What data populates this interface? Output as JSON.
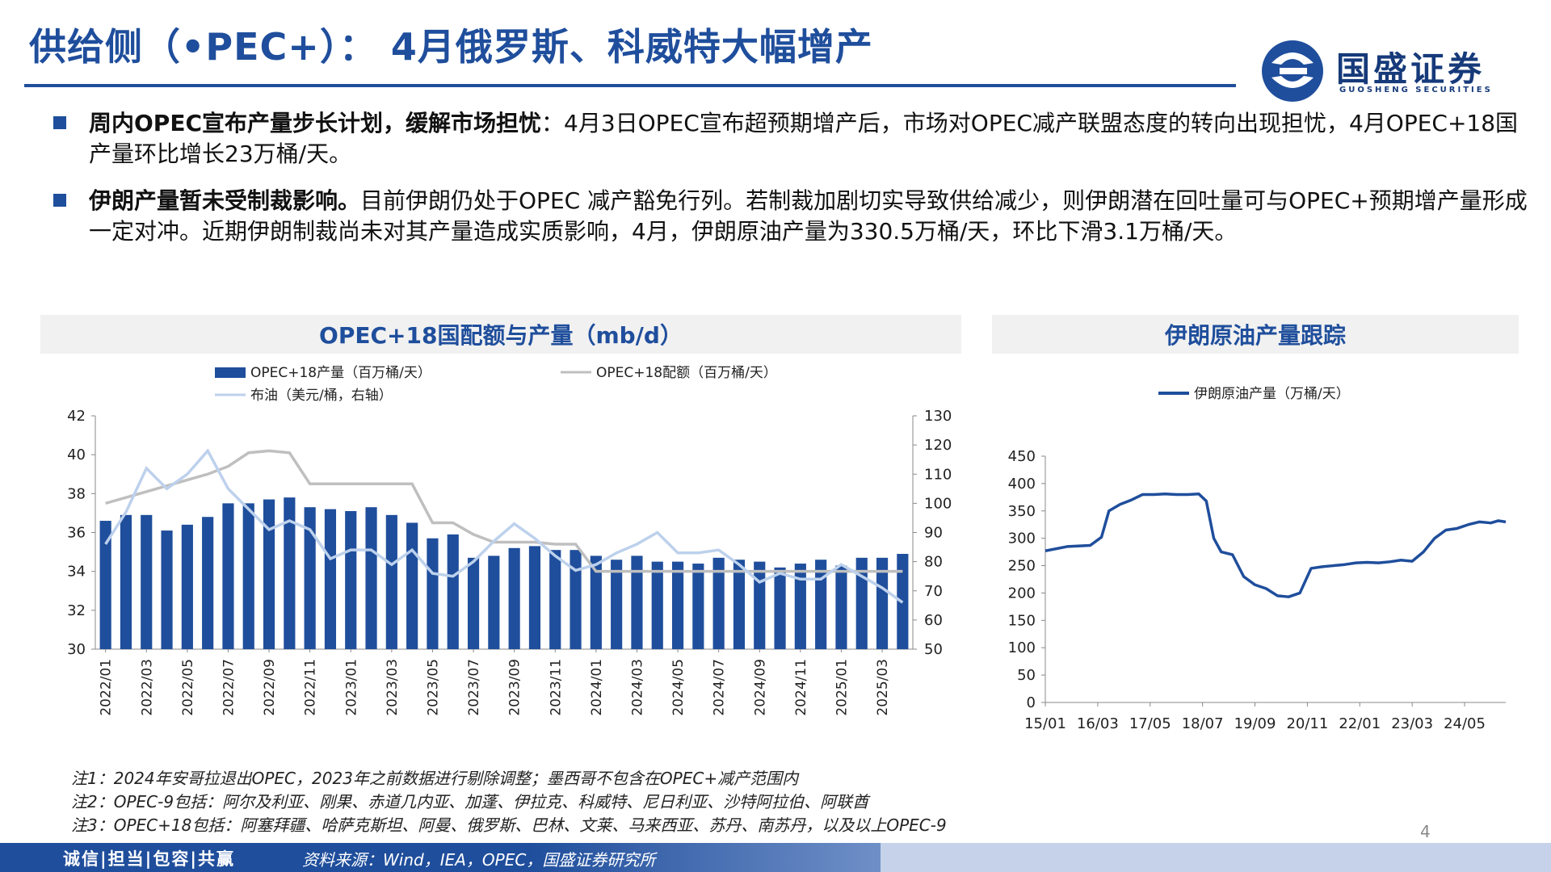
{
  "header": {
    "title": "供给侧（•PEC+）： 4月俄罗斯、科威特大幅增产",
    "logo_name": "国盛证券",
    "logo_sub": "GUOSHENG SECURITIES"
  },
  "bullets": [
    {
      "bold": "周内OPEC宣布产量步长计划，缓解市场担忧",
      "text": "：4月3日OPEC宣布超预期增产后，市场对OPEC减产联盟态度的转向出现担忧，4月OPEC+18国产量环比增长23万桶/天。"
    },
    {
      "bold": "伊朗产量暂未受制裁影响。",
      "text": "目前伊朗仍处于OPEC 减产豁免行列。若制裁加剧切实导致供给减少，则伊朗潜在回吐量可与OPEC+预期增产量形成一定对冲。近期伊朗制裁尚未对其产量造成实质影响，4月，伊朗原油产量为330.5万桶/天，环比下滑3.1万桶/天。"
    }
  ],
  "chart_data": [
    {
      "type": "bar",
      "title": "OPEC+18国配额与产量（mb/d）",
      "legend": [
        "OPEC+18产量（百万桶/天）",
        "OPEC+18配额（百万桶/天）",
        "布油（美元/桶，右轴）"
      ],
      "x_tick_labels": [
        "2022/01",
        "2022/03",
        "2022/05",
        "2022/07",
        "2022/09",
        "2022/11",
        "2023/01",
        "2023/03",
        "2023/05",
        "2023/07",
        "2023/09",
        "2023/11",
        "2024/01",
        "2024/03",
        "2024/05",
        "2024/07",
        "2024/09",
        "2024/11",
        "2025/01",
        "2025/03"
      ],
      "left_axis": {
        "ylim": [
          30,
          42
        ],
        "ticks": [
          30,
          32,
          34,
          36,
          38,
          40,
          42
        ]
      },
      "right_axis": {
        "ylim": [
          50,
          130
        ],
        "ticks": [
          50,
          60,
          70,
          80,
          90,
          100,
          110,
          120,
          130
        ]
      },
      "months": [
        "2022/01",
        "2022/02",
        "2022/03",
        "2022/04",
        "2022/05",
        "2022/06",
        "2022/07",
        "2022/08",
        "2022/09",
        "2022/10",
        "2022/11",
        "2022/12",
        "2023/01",
        "2023/02",
        "2023/03",
        "2023/04",
        "2023/05",
        "2023/06",
        "2023/07",
        "2023/08",
        "2023/09",
        "2023/10",
        "2023/11",
        "2023/12",
        "2024/01",
        "2024/02",
        "2024/03",
        "2024/04",
        "2024/05",
        "2024/06",
        "2024/07",
        "2024/08",
        "2024/09",
        "2024/10",
        "2024/11",
        "2024/12",
        "2025/01",
        "2025/02",
        "2025/03",
        "2025/04"
      ],
      "series": [
        {
          "name": "OPEC+18产量（百万桶/天）",
          "type": "bar",
          "axis": "left",
          "color": "#1f4e9c",
          "values": [
            36.6,
            36.9,
            36.9,
            36.1,
            36.4,
            36.8,
            37.5,
            37.5,
            37.7,
            37.8,
            37.3,
            37.2,
            37.1,
            37.3,
            36.9,
            36.5,
            35.7,
            35.9,
            34.7,
            34.8,
            35.2,
            35.3,
            35.1,
            35.1,
            34.8,
            34.6,
            34.8,
            34.5,
            34.5,
            34.4,
            34.7,
            34.6,
            34.5,
            34.2,
            34.4,
            34.6,
            34.3,
            34.7,
            34.7,
            34.9
          ]
        },
        {
          "name": "OPEC+18配额（百万桶/天）",
          "type": "line",
          "axis": "left",
          "color": "#bfbfbf",
          "values": [
            37.5,
            37.8,
            38.1,
            38.4,
            38.7,
            39.0,
            39.4,
            40.1,
            40.2,
            40.1,
            38.5,
            38.5,
            38.5,
            38.5,
            38.5,
            38.5,
            36.5,
            36.5,
            35.9,
            35.5,
            35.5,
            35.5,
            35.4,
            35.4,
            34.0,
            34.0,
            34.0,
            34.0,
            34.0,
            34.0,
            34.0,
            34.0,
            34.0,
            34.0,
            34.0,
            34.0,
            34.0,
            34.0,
            34.0,
            34.0
          ]
        },
        {
          "name": "布油（美元/桶，右轴）",
          "type": "line",
          "axis": "right",
          "color": "#bdd1ec",
          "values": [
            86,
            97,
            112,
            105,
            110,
            118,
            105,
            98,
            91,
            94,
            91,
            81,
            84,
            84,
            79,
            84,
            76,
            75,
            80,
            87,
            93,
            88,
            82,
            77,
            79,
            83,
            86,
            90,
            83,
            83,
            84,
            79,
            73,
            76,
            74,
            74,
            79,
            75,
            71,
            66
          ]
        }
      ]
    },
    {
      "type": "line",
      "title": "伊朗原油产量跟踪",
      "legend": [
        "伊朗原油产量（万桶/天）"
      ],
      "x_tick_labels": [
        "15/01",
        "16/03",
        "17/05",
        "18/07",
        "19/09",
        "20/11",
        "22/01",
        "23/03",
        "24/05"
      ],
      "ylim": [
        0,
        450
      ],
      "y_ticks": [
        0,
        50,
        100,
        150,
        200,
        250,
        300,
        350,
        400,
        450
      ],
      "series": [
        {
          "name": "伊朗原油产量（万桶/天）",
          "color": "#1f4e9c",
          "x": [
            "15/01",
            "15/07",
            "16/01",
            "16/04",
            "16/06",
            "16/09",
            "16/12",
            "17/03",
            "17/06",
            "17/09",
            "17/12",
            "18/03",
            "18/06",
            "18/08",
            "18/10",
            "18/12",
            "19/03",
            "19/06",
            "19/09",
            "19/12",
            "20/03",
            "20/06",
            "20/09",
            "20/12",
            "21/03",
            "21/06",
            "21/09",
            "21/12",
            "22/03",
            "22/06",
            "22/09",
            "22/12",
            "23/03",
            "23/06",
            "23/09",
            "23/12",
            "24/03",
            "24/06",
            "24/09",
            "24/12",
            "25/02",
            "25/04"
          ],
          "values": [
            277,
            285,
            287,
            302,
            350,
            362,
            370,
            380,
            380,
            381,
            380,
            380,
            381,
            368,
            300,
            275,
            270,
            230,
            215,
            208,
            195,
            193,
            200,
            245,
            248,
            250,
            252,
            255,
            256,
            255,
            257,
            260,
            258,
            275,
            300,
            315,
            318,
            325,
            330,
            328,
            332,
            330
          ]
        }
      ]
    }
  ],
  "notes": [
    "注1：2024年安哥拉退出OPEC，2023年之前数据进行剔除调整；墨西哥不包含在OPEC+减产范围内",
    "注2：OPEC-9包括：阿尔及利亚、刚果、赤道几内亚、加蓬、伊拉克、科威特、尼日利亚、沙特阿拉伯、阿联酋",
    "注3：OPEC+18包括：阿塞拜疆、哈萨克斯坦、阿曼、俄罗斯、巴林、文莱、马来西亚、苏丹、南苏丹，以及以上OPEC-9"
  ],
  "page_number": "4",
  "footer": {
    "motto": "诚信|担当|包容|共赢",
    "source": "资料来源：Wind，IEA，OPEC，国盛证券研究所"
  },
  "colors": {
    "brand": "#1f4e9c",
    "quota": "#bfbfbf",
    "brent": "#bdd1ec"
  }
}
